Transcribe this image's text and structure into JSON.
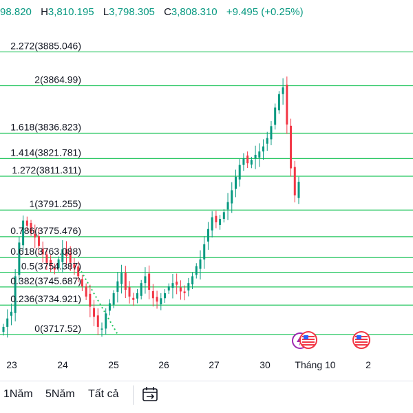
{
  "ohlc": {
    "open_value": "98.820",
    "high_label": "H",
    "high_value": "3,810.195",
    "low_label": "L",
    "low_value": "3,798.305",
    "close_label": "C",
    "close_value": "3,808.310",
    "change": "+9.495 (+0.25%)"
  },
  "colors": {
    "up": "#089981",
    "down": "#f23645",
    "fib_line": "#22c55e",
    "fib_text": "#131722",
    "axis_text": "#131722",
    "trend": "#22c55e"
  },
  "chart_data": {
    "type": "candlestick",
    "y_range": [
      3708.5,
      3901.5
    ],
    "fib_levels": [
      {
        "label": "2.272(3885.046)",
        "value": 3885.046
      },
      {
        "label": "2(3864.99)",
        "value": 3864.99
      },
      {
        "label": "1.618(3836.823)",
        "value": 3836.823
      },
      {
        "label": "1.414(3821.781)",
        "value": 3821.781
      },
      {
        "label": "1.272(3811.311)",
        "value": 3811.311
      },
      {
        "label": "1(3791.255)",
        "value": 3791.255
      },
      {
        "label": "0.786(3775.476)",
        "value": 3775.476
      },
      {
        "label": "0.618(3763.088)",
        "value": 3763.088
      },
      {
        "label": "0.5(3754.387)",
        "value": 3754.387
      },
      {
        "label": "0.382(3745.687)",
        "value": 3745.687
      },
      {
        "label": "0.236(3734.921)",
        "value": 3734.921
      },
      {
        "label": "0(3717.52)",
        "value": 3717.52
      }
    ],
    "x_ticks": [
      "23",
      "24",
      "25",
      "26",
      "27",
      "30",
      "Tháng 10",
      "2"
    ],
    "trend_line": {
      "from": 3757,
      "to": 3717.52
    },
    "closes": [
      3722,
      3727,
      3731,
      3752,
      3772,
      3785,
      3782,
      3778,
      3775,
      3770,
      3765,
      3760,
      3758,
      3756,
      3762,
      3768,
      3764,
      3760,
      3757,
      3752,
      3746,
      3740,
      3734,
      3728,
      3722,
      3721,
      3730,
      3736,
      3742,
      3749,
      3754,
      3744,
      3740,
      3738,
      3742,
      3748,
      3752,
      3744,
      3739,
      3737,
      3739,
      3742,
      3746,
      3748,
      3747,
      3743,
      3742,
      3748,
      3752,
      3758,
      3762,
      3771,
      3780,
      3787,
      3784,
      3786,
      3790,
      3796,
      3803,
      3811,
      3818,
      3822,
      3819,
      3821,
      3824,
      3826,
      3829,
      3834,
      3841,
      3852,
      3860,
      3864,
      3842,
      3816,
      3800,
      3808
    ]
  },
  "icons": {
    "event_1": "lightning-flag-icon",
    "event_2": "us-flag-icon",
    "event_3": "us-flag-icon",
    "date_range": "calendar-range-icon"
  },
  "ranges": [
    "1Năm",
    "5Năm",
    "Tất cả"
  ]
}
